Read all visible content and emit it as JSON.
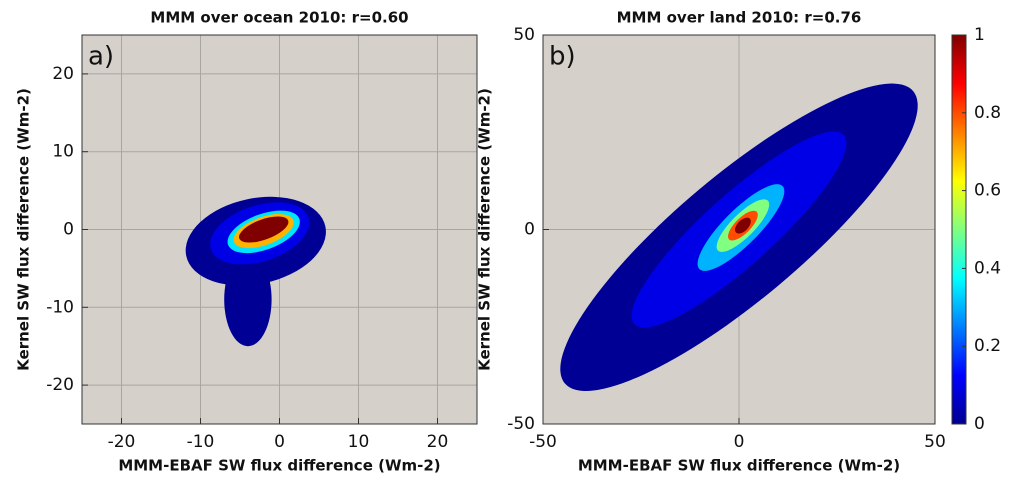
{
  "chart_data": [
    {
      "type": "density",
      "title": "MMM over ocean 2010: r=0.60",
      "panel_label": "a)",
      "x_label": "MMM-EBAF SW flux difference (Wm-2)",
      "y_label": "Kernel SW flux difference (Wm-2)",
      "xlim": [
        -25,
        25
      ],
      "ylim": [
        -25,
        25
      ],
      "xticks": [
        -20,
        -10,
        0,
        10,
        20
      ],
      "yticks": [
        -20,
        -10,
        0,
        10,
        20
      ],
      "grid": true,
      "density": [
        {
          "level": 0.02,
          "x": -4,
          "y": -9,
          "rx": 3,
          "ry": 6,
          "angle": 0
        },
        {
          "level": 0.02,
          "x": -3,
          "y": -1.5,
          "rx": 9,
          "ry": 5.5,
          "angle": 12
        },
        {
          "level": 0.1,
          "x": -2.5,
          "y": -0.5,
          "rx": 6.5,
          "ry": 3.6,
          "angle": 18
        },
        {
          "level": 0.35,
          "x": -2,
          "y": -0.3,
          "rx": 4.8,
          "ry": 2.3,
          "angle": 20
        },
        {
          "level": 0.7,
          "x": -2,
          "y": -0.2,
          "rx": 4,
          "ry": 1.8,
          "angle": 20
        },
        {
          "level": 1,
          "x": -2,
          "y": 0,
          "rx": 3.3,
          "ry": 1.3,
          "angle": 20
        }
      ]
    },
    {
      "type": "density",
      "title": "MMM over land 2010: r=0.76",
      "panel_label": "b)",
      "x_label": "MMM-EBAF SW flux difference (Wm-2)",
      "y_label": "Kernel SW flux difference (Wm-2)",
      "xlim": [
        -50,
        50
      ],
      "ylim": [
        -50,
        50
      ],
      "xticks": [
        -50,
        0,
        50
      ],
      "yticks": [
        -50,
        0,
        50
      ],
      "grid": true,
      "density": [
        {
          "level": 0.02,
          "x": 0,
          "y": -2,
          "rx": 58,
          "ry": 16,
          "angle": 40
        },
        {
          "level": 0.1,
          "x": 0,
          "y": 0,
          "rx": 36,
          "ry": 9,
          "angle": 42
        },
        {
          "level": 0.3,
          "x": 0.5,
          "y": 0.5,
          "rx": 15,
          "ry": 4.5,
          "angle": 45
        },
        {
          "level": 0.5,
          "x": 1,
          "y": 1,
          "rx": 9,
          "ry": 3,
          "angle": 45
        },
        {
          "level": 0.8,
          "x": 1,
          "y": 1,
          "rx": 5,
          "ry": 2,
          "angle": 45
        },
        {
          "level": 1,
          "x": 1,
          "y": 1,
          "rx": 2.5,
          "ry": 1.4,
          "angle": 45
        }
      ],
      "colorbar": {
        "lim": [
          0,
          1
        ],
        "ticks": [
          0,
          0.2,
          0.4,
          0.6,
          0.8,
          1
        ]
      }
    }
  ]
}
